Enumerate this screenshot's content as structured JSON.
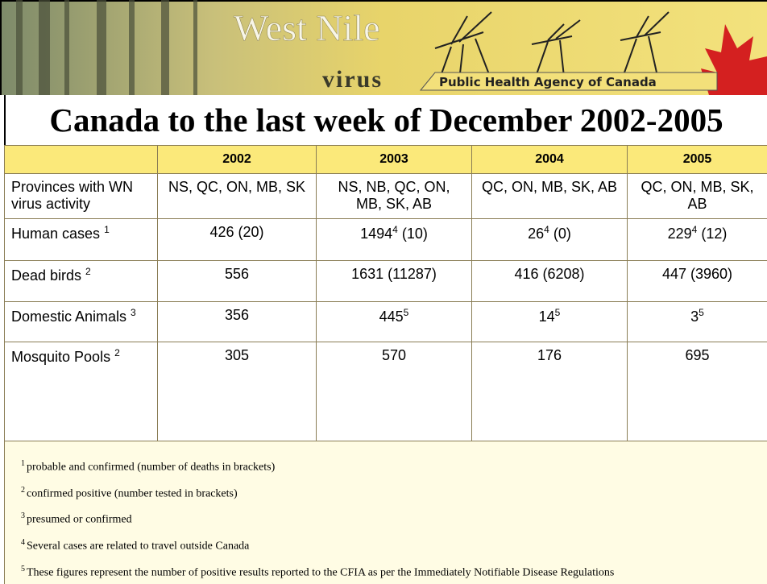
{
  "banner": {
    "logo_top": "West Nile",
    "logo_bottom": "virus",
    "agency": "Public Health Agency of Canada"
  },
  "title": "Canada to the last week of December 2002-2005",
  "table": {
    "header": [
      "2002",
      "2003",
      "2004",
      "2005"
    ],
    "rows": [
      {
        "label": {
          "text": "Provinces with WN virus activity"
        },
        "cells": [
          {
            "text": "NS, QC, ON, MB, SK"
          },
          {
            "text": "NS, NB, QC, ON, MB, SK, AB"
          },
          {
            "text": "QC, ON, MB, SK, AB"
          },
          {
            "text": "QC, ON, MB, SK, AB"
          }
        ]
      },
      {
        "label": {
          "text": "Human cases",
          "sup": "1"
        },
        "cells": [
          {
            "text": "426 (20)"
          },
          {
            "text": "1494",
            "sup": "4",
            "post": " (10)"
          },
          {
            "text": "26",
            "sup": "4",
            "post": " (0)"
          },
          {
            "text": "229",
            "sup": "4",
            "post": " (12)"
          }
        ]
      },
      {
        "label": {
          "text": "Dead birds",
          "sup": "2"
        },
        "cells": [
          {
            "text": "556"
          },
          {
            "text": "1631 (11287)"
          },
          {
            "text": "416 (6208)"
          },
          {
            "text": "447 (3960)"
          }
        ]
      },
      {
        "label": {
          "text": "Domestic Animals",
          "sup": "3"
        },
        "cells": [
          {
            "text": "356"
          },
          {
            "text": "445",
            "sup": "5"
          },
          {
            "text": "14",
            "sup": "5"
          },
          {
            "text": "3",
            "sup": "5"
          }
        ]
      },
      {
        "label": {
          "text": "Mosquito Pools",
          "sup": "2"
        },
        "cells": [
          {
            "text": "305"
          },
          {
            "text": "570"
          },
          {
            "text": "176"
          },
          {
            "text": "695"
          }
        ]
      }
    ]
  },
  "footnotes": [
    {
      "marker": "1",
      "text": "probable and confirmed (number of deaths in brackets)"
    },
    {
      "marker": "2",
      "text": "confirmed positive (number tested in brackets)"
    },
    {
      "marker": "3",
      "text": "presumed or confirmed"
    },
    {
      "marker": "4",
      "text": "Several cases are related to travel outside Canada"
    },
    {
      "marker": "5",
      "text": "These figures represent the number of positive results reported to the CFIA as per the Immediately Notifiable Disease Regulations"
    }
  ]
}
